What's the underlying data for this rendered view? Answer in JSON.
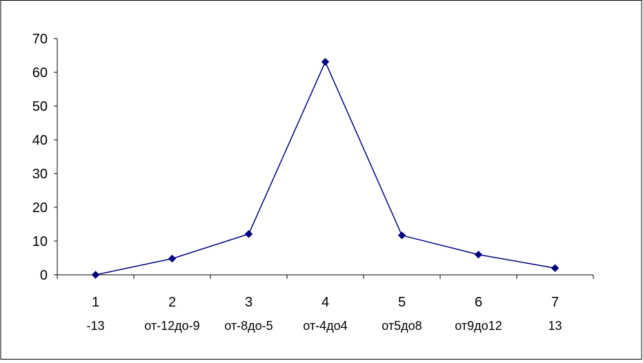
{
  "chart_data": {
    "type": "line",
    "categories": [
      "1",
      "2",
      "3",
      "4",
      "5",
      "6",
      "7"
    ],
    "sub_labels": [
      "-13",
      "от-12до-9",
      "от-8до-5",
      "от-4до4",
      "от5до8",
      "от9до12",
      "13"
    ],
    "series": [
      {
        "values": [
          0,
          4.8,
          12.1,
          63.1,
          11.7,
          6.0,
          2.0
        ]
      }
    ],
    "ylim": [
      0,
      70
    ],
    "yticks": [
      "0",
      "10",
      "20",
      "30",
      "40",
      "50",
      "60",
      "70"
    ],
    "grid": false,
    "legend": "none",
    "colors": {
      "series": "#000080",
      "axis": "#000000",
      "border": "#000000",
      "background": "#ffffff"
    }
  }
}
